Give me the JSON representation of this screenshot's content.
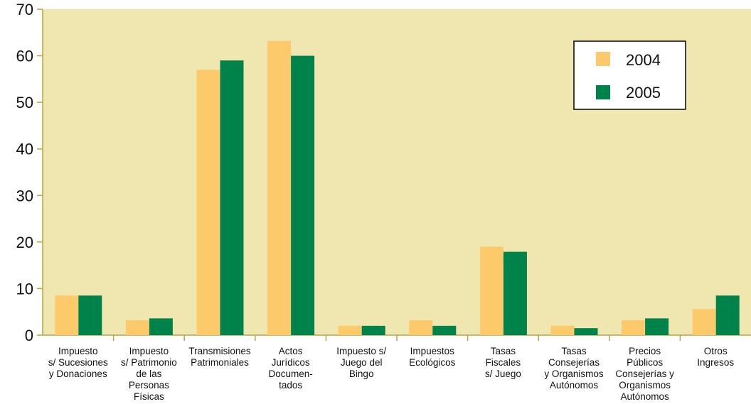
{
  "chart_data": {
    "type": "bar",
    "title": "",
    "xlabel": "",
    "ylabel": "",
    "ylim": [
      0,
      70
    ],
    "yticks": [
      0,
      10,
      20,
      30,
      40,
      50,
      60,
      70
    ],
    "grid": false,
    "legend_position": "top-right",
    "colors": {
      "plot_background": "#f0e6b0",
      "axis": "#b3a640",
      "series": [
        "#fcc96b",
        "#00834a"
      ]
    },
    "categories": [
      [
        "Impuesto",
        "s/ Sucesiones",
        "y Donaciones"
      ],
      [
        "Impuesto",
        "s/ Patrimonio",
        "de las",
        "Personas",
        "Físicas"
      ],
      [
        "Transmisiones",
        "Patrimoniales"
      ],
      [
        "Actos",
        "Jurídicos",
        "Documen-",
        "tados"
      ],
      [
        "Impuesto s/",
        "Juego del",
        "Bingo"
      ],
      [
        "Impuestos",
        "Ecológicos"
      ],
      [
        "Tasas",
        "Fiscales",
        "s/ Juego"
      ],
      [
        "Tasas",
        "Consejerías",
        "y  Organismos",
        "Autónomos"
      ],
      [
        "Precios",
        "Públicos",
        "Consejerías y",
        "Organismos",
        "Autónomos"
      ],
      [
        "Otros",
        "Ingresos"
      ]
    ],
    "series": [
      {
        "name": "2004",
        "values": [
          8.5,
          3.2,
          57.0,
          63.2,
          2.0,
          3.2,
          19.0,
          2.0,
          3.2,
          5.6
        ]
      },
      {
        "name": "2005",
        "values": [
          8.5,
          3.6,
          59.0,
          60.0,
          2.0,
          2.0,
          17.9,
          1.5,
          3.6,
          8.5
        ]
      }
    ]
  }
}
